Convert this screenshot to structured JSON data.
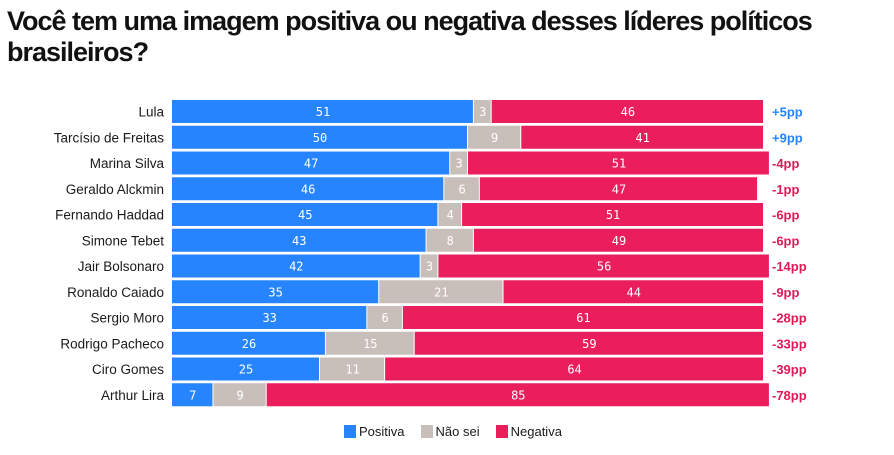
{
  "title": "Você tem uma imagem positiva ou negativa desses líderes políticos brasileiros?",
  "colors": {
    "positiva": "#2684FF",
    "nao_sei": "#C9BFBA",
    "negativa": "#EB1E5D",
    "diff_positive": "#2684FF",
    "diff_negative": "#E01A54"
  },
  "legend": [
    {
      "key": "positiva",
      "label": "Positiva"
    },
    {
      "key": "nao_sei",
      "label": "Não sei"
    },
    {
      "key": "negativa",
      "label": "Negativa"
    }
  ],
  "chart_data": {
    "type": "bar",
    "orientation": "horizontal",
    "stacked": true,
    "title": "Você tem uma imagem positiva ou negativa desses líderes políticos brasileiros?",
    "xlabel": "",
    "ylabel": "",
    "xlim": [
      0,
      100
    ],
    "grid": false,
    "legend_position": "bottom-center",
    "categories": [
      "Lula",
      "Tarcísio de Freitas",
      "Marina Silva",
      "Geraldo Alckmin",
      "Fernando Haddad",
      "Simone Tebet",
      "Jair Bolsonaro",
      "Ronaldo Caiado",
      "Sergio Moro",
      "Rodrigo Pacheco",
      "Ciro Gomes",
      "Arthur Lira"
    ],
    "series": [
      {
        "name": "Positiva",
        "key": "positiva",
        "values": [
          51,
          50,
          47,
          46,
          45,
          43,
          42,
          35,
          33,
          26,
          25,
          7
        ]
      },
      {
        "name": "Não sei",
        "key": "nao_sei",
        "values": [
          3,
          9,
          3,
          6,
          4,
          8,
          3,
          21,
          6,
          15,
          11,
          9
        ]
      },
      {
        "name": "Negativa",
        "key": "negativa",
        "values": [
          46,
          41,
          51,
          47,
          51,
          49,
          56,
          44,
          61,
          59,
          64,
          85
        ]
      }
    ],
    "annotations": [
      "+5pp",
      "+9pp",
      "-4pp",
      "-1pp",
      "-6pp",
      "-6pp",
      "-14pp",
      "-9pp",
      "-28pp",
      "-33pp",
      "-39pp",
      "-78pp"
    ]
  }
}
